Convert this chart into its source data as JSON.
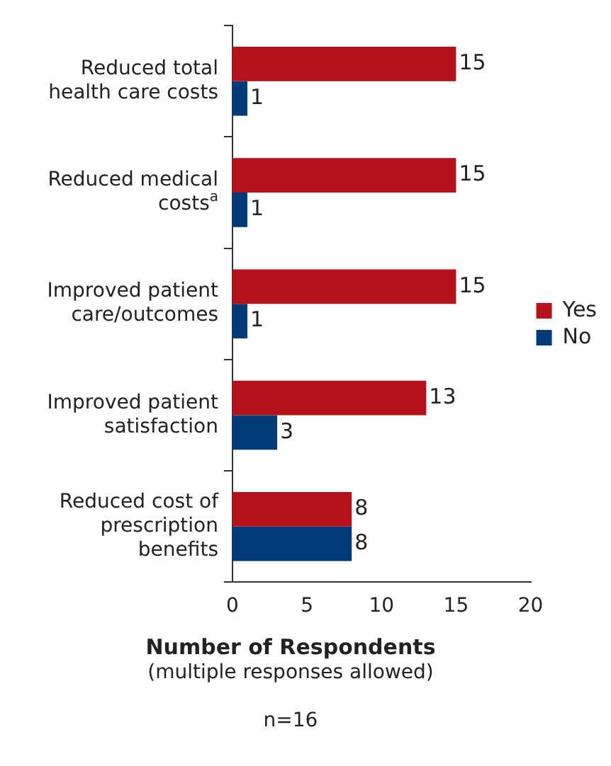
{
  "chart_data": {
    "type": "bar",
    "orientation": "horizontal",
    "categories": [
      "Reduced total health care costs",
      "Reduced medical costs$^{a}$",
      "Improved patient care/outcomes",
      "Improved patient satisfaction",
      "Reduced cost of prescription benefits"
    ],
    "series": [
      {
        "name": "Yes",
        "color": "#b5121b",
        "values": [
          15,
          15,
          15,
          13,
          8
        ]
      },
      {
        "name": "No",
        "color": "#003b7a",
        "values": [
          1,
          1,
          1,
          3,
          8
        ]
      }
    ],
    "xlim": [
      0,
      20
    ],
    "xticks": [
      0,
      5,
      10,
      15,
      20
    ],
    "xlabel": "Number of Respondents",
    "annotations": [
      "(multiple responses allowed)",
      "n=16"
    ],
    "data_labels": true,
    "grid": false,
    "legend": "right"
  }
}
